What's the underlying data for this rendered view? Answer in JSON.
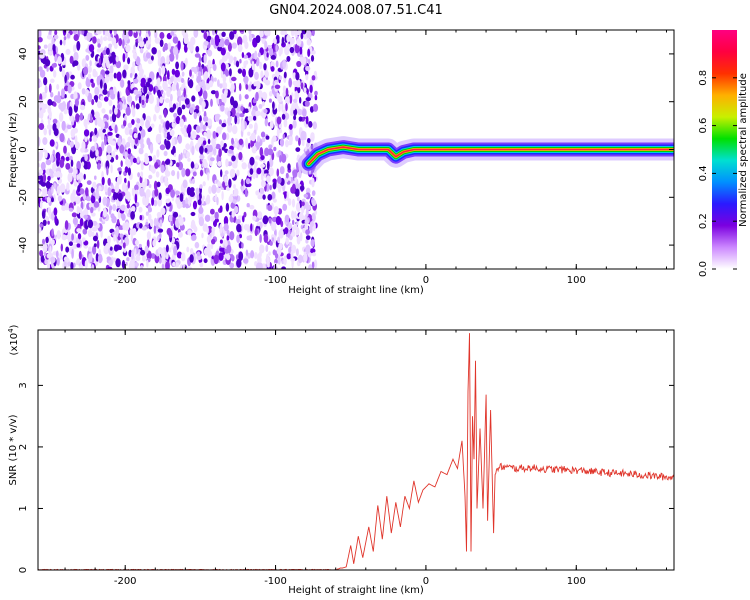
{
  "title": "GN04.2024.008.07.51.C41",
  "chart_data": [
    {
      "type": "heatmap",
      "xlabel": "Height of straight line (km)",
      "ylabel": "Frequency (Hz)",
      "xlim": [
        -258,
        165
      ],
      "ylim": [
        -50,
        50
      ],
      "xticks": [
        -200,
        -100,
        0,
        100
      ],
      "yticks": [
        -40,
        -20,
        0,
        20,
        40
      ],
      "noise_region_x": [
        -258,
        -73
      ],
      "ridge": [
        {
          "x": -78,
          "y": -6
        },
        {
          "x": -72,
          "y": -2
        },
        {
          "x": -65,
          "y": 0
        },
        {
          "x": -55,
          "y": 1
        },
        {
          "x": -45,
          "y": 0
        },
        {
          "x": -35,
          "y": 0
        },
        {
          "x": -25,
          "y": 0
        },
        {
          "x": -20,
          "y": -3
        },
        {
          "x": -15,
          "y": -1
        },
        {
          "x": -8,
          "y": 0
        },
        {
          "x": 0,
          "y": 0
        },
        {
          "x": 10,
          "y": 0
        },
        {
          "x": 20,
          "y": 0
        },
        {
          "x": 30,
          "y": 0
        },
        {
          "x": 165,
          "y": 0
        }
      ],
      "colorbar": {
        "label": "Normalized spectral amplitude",
        "ticks": [
          0.0,
          0.2,
          0.4,
          0.6,
          0.8
        ],
        "tick_labels": [
          "0.0",
          "0.2",
          "0.4",
          "0.6",
          "0.8"
        ],
        "colors": [
          "#ffffff",
          "#cc88ff",
          "#7b00e0",
          "#2a1aff",
          "#0090ff",
          "#00e0d0",
          "#00e000",
          "#c8f000",
          "#ffb000",
          "#ff3000",
          "#ff0040",
          "#ff0080"
        ]
      }
    },
    {
      "type": "line",
      "xlabel": "Height of straight line (km)",
      "ylabel": "SNR (10 * v/v)",
      "multiplier": "(x10",
      "multiplier_exp": "4",
      "multiplier_close": ")",
      "xlim": [
        -258,
        165
      ],
      "ylim": [
        0,
        3.9
      ],
      "xticks": [
        -200,
        -100,
        0,
        100
      ],
      "yticks": [
        0,
        1,
        2,
        3
      ],
      "color": "#e0352b",
      "series": [
        {
          "x": -258,
          "y": 0.0
        },
        {
          "x": -60,
          "y": 0.0
        },
        {
          "x": -53,
          "y": 0.05
        },
        {
          "x": -50,
          "y": 0.4
        },
        {
          "x": -48,
          "y": 0.1
        },
        {
          "x": -45,
          "y": 0.55
        },
        {
          "x": -42,
          "y": 0.2
        },
        {
          "x": -38,
          "y": 0.7
        },
        {
          "x": -35,
          "y": 0.3
        },
        {
          "x": -32,
          "y": 1.05
        },
        {
          "x": -29,
          "y": 0.5
        },
        {
          "x": -26,
          "y": 1.2
        },
        {
          "x": -23,
          "y": 0.6
        },
        {
          "x": -20,
          "y": 1.1
        },
        {
          "x": -17,
          "y": 0.7
        },
        {
          "x": -14,
          "y": 1.2
        },
        {
          "x": -11,
          "y": 1.0
        },
        {
          "x": -8,
          "y": 1.45
        },
        {
          "x": -5,
          "y": 1.1
        },
        {
          "x": -2,
          "y": 1.3
        },
        {
          "x": 2,
          "y": 1.4
        },
        {
          "x": 6,
          "y": 1.35
        },
        {
          "x": 10,
          "y": 1.6
        },
        {
          "x": 14,
          "y": 1.55
        },
        {
          "x": 18,
          "y": 1.8
        },
        {
          "x": 21,
          "y": 1.65
        },
        {
          "x": 24,
          "y": 2.1
        },
        {
          "x": 26,
          "y": 1.2
        },
        {
          "x": 27,
          "y": 0.3
        },
        {
          "x": 28,
          "y": 2.9
        },
        {
          "x": 29,
          "y": 3.85
        },
        {
          "x": 30,
          "y": 0.3
        },
        {
          "x": 31,
          "y": 2.5
        },
        {
          "x": 32,
          "y": 1.8
        },
        {
          "x": 33,
          "y": 3.4
        },
        {
          "x": 34,
          "y": 1.0
        },
        {
          "x": 36,
          "y": 2.3
        },
        {
          "x": 38,
          "y": 1.0
        },
        {
          "x": 40,
          "y": 2.85
        },
        {
          "x": 41,
          "y": 0.8
        },
        {
          "x": 43,
          "y": 2.6
        },
        {
          "x": 45,
          "y": 0.6
        },
        {
          "x": 46,
          "y": 1.55
        },
        {
          "x": 48,
          "y": 1.65
        },
        {
          "x": 50,
          "y": 1.68
        },
        {
          "x": 60,
          "y": 1.65
        },
        {
          "x": 70,
          "y": 1.66
        },
        {
          "x": 80,
          "y": 1.64
        },
        {
          "x": 90,
          "y": 1.63
        },
        {
          "x": 100,
          "y": 1.62
        },
        {
          "x": 110,
          "y": 1.6
        },
        {
          "x": 120,
          "y": 1.58
        },
        {
          "x": 130,
          "y": 1.57
        },
        {
          "x": 140,
          "y": 1.55
        },
        {
          "x": 150,
          "y": 1.53
        },
        {
          "x": 165,
          "y": 1.5
        }
      ]
    }
  ]
}
